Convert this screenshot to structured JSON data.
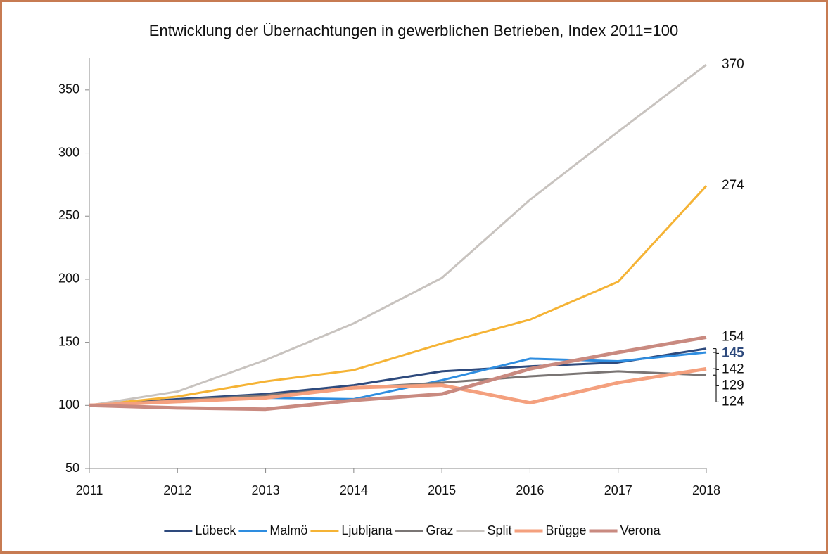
{
  "chart_data": {
    "type": "line",
    "title": "Entwicklung der Übernachtungen in gewerblichen Betrieben, Index 2011=100",
    "x": [
      2011,
      2012,
      2013,
      2014,
      2015,
      2016,
      2017,
      2018
    ],
    "xlim": [
      2011,
      2018
    ],
    "xticks": [
      2011,
      2012,
      2013,
      2014,
      2015,
      2016,
      2017,
      2018
    ],
    "ylim": [
      50,
      375
    ],
    "yticks": [
      50,
      100,
      150,
      200,
      250,
      300,
      350
    ],
    "grid": false,
    "legend": "bottom",
    "series": [
      {
        "name": "Lübeck",
        "color": "#2e4a7d",
        "width": 3,
        "label_bold": true,
        "values": [
          100,
          105,
          109,
          116,
          127,
          131,
          134,
          145
        ]
      },
      {
        "name": "Malmö",
        "color": "#2e8de0",
        "width": 3,
        "values": [
          100,
          103,
          106,
          105,
          120,
          137,
          135,
          142
        ]
      },
      {
        "name": "Ljubljana",
        "color": "#f5b335",
        "width": 3,
        "values": [
          100,
          107,
          119,
          128,
          149,
          168,
          198,
          274
        ]
      },
      {
        "name": "Graz",
        "color": "#7a7574",
        "width": 3,
        "values": [
          100,
          104,
          108,
          114,
          118,
          123,
          127,
          124
        ]
      },
      {
        "name": "Split",
        "color": "#c8c3bf",
        "width": 3,
        "values": [
          100,
          111,
          136,
          165,
          201,
          263,
          317,
          370
        ]
      },
      {
        "name": "Brügge",
        "color": "#f4a07e",
        "width": 5,
        "values": [
          100,
          103,
          106,
          114,
          116,
          102,
          118,
          129
        ]
      },
      {
        "name": "Verona",
        "color": "#c98a80",
        "width": 5,
        "values": [
          100,
          98,
          97,
          104,
          109,
          129,
          142,
          154
        ]
      }
    ]
  }
}
